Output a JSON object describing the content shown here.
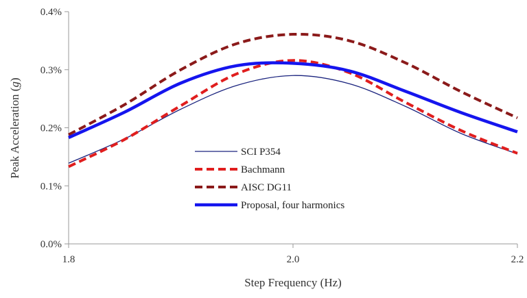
{
  "chart_data": {
    "type": "line",
    "title": "",
    "xlabel": "Step Frequency (Hz)",
    "ylabel_prefix": "Peak Acceleration (",
    "ylabel_italic": "g",
    "ylabel_suffix": ")",
    "xlim": [
      1.8,
      2.2
    ],
    "ylim": [
      0.0,
      0.4
    ],
    "x_ticks": [
      1.8,
      2.0,
      2.2
    ],
    "x_tick_labels": [
      "1.8",
      "2.0",
      "2.2"
    ],
    "y_ticks": [
      0.0,
      0.1,
      0.2,
      0.3,
      0.4
    ],
    "y_tick_labels": [
      "0.0%",
      "0.1%",
      "0.2%",
      "0.3%",
      "0.4%"
    ],
    "grid": false,
    "legend_position": "center-left",
    "x": [
      1.8,
      1.85,
      1.9,
      1.95,
      2.0,
      2.05,
      2.1,
      2.15,
      2.2
    ],
    "series": [
      {
        "name": "SCI P354",
        "color": "#1a237e",
        "style": "solid-thin",
        "values": [
          0.139,
          0.181,
          0.232,
          0.273,
          0.29,
          0.276,
          0.237,
          0.19,
          0.155
        ]
      },
      {
        "name": "Bachmann",
        "color": "#e01e1e",
        "style": "dashed",
        "values": [
          0.133,
          0.18,
          0.238,
          0.293,
          0.316,
          0.295,
          0.244,
          0.195,
          0.156
        ]
      },
      {
        "name": "AISC DG11",
        "color": "#8b1a1a",
        "style": "dashed",
        "values": [
          0.188,
          0.24,
          0.3,
          0.345,
          0.361,
          0.35,
          0.312,
          0.262,
          0.217
        ]
      },
      {
        "name": "Proposal, four harmonics",
        "color": "#1515ee",
        "style": "solid-thick",
        "values": [
          0.183,
          0.227,
          0.277,
          0.307,
          0.311,
          0.298,
          0.263,
          0.226,
          0.193
        ]
      }
    ]
  }
}
